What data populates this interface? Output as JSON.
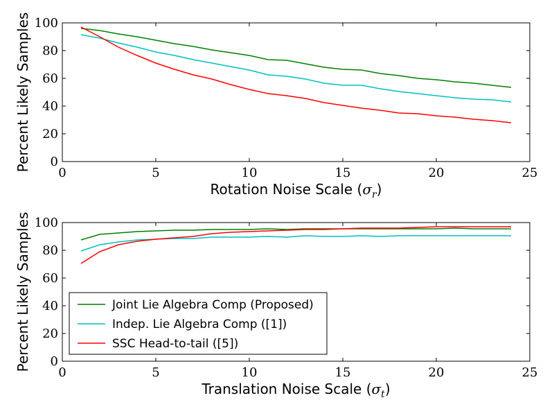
{
  "chart_data": [
    {
      "type": "line",
      "title": "",
      "xlabel": "Rotation Noise Scale (",
      "xlabel_symbol": "σ",
      "xlabel_sub": "r",
      "xlabel_close": ")",
      "ylabel": "Percent Likely Samples",
      "xlim": [
        0,
        25
      ],
      "ylim": [
        0,
        100
      ],
      "xticks": [
        0,
        5,
        10,
        15,
        20,
        25
      ],
      "yticks": [
        0,
        20,
        40,
        60,
        80,
        100
      ],
      "grid": false,
      "x": [
        1,
        2,
        3,
        4,
        5,
        6,
        7,
        8,
        9,
        10,
        11,
        12,
        13,
        14,
        15,
        16,
        17,
        18,
        19,
        20,
        21,
        22,
        23,
        24
      ],
      "series": [
        {
          "name": "Joint Lie Algebra Comp (Proposed)",
          "color": "#007f00",
          "values": [
            96,
            94.5,
            92,
            90,
            87.5,
            85,
            83,
            80.5,
            78.5,
            76.5,
            73.5,
            73,
            70.5,
            68,
            66.5,
            66,
            63.5,
            62,
            60,
            59,
            57.5,
            56.5,
            55,
            53.5
          ]
        },
        {
          "name": "Indep. Lie Algebra Comp ([1])",
          "color": "#00bfbf",
          "values": [
            91.5,
            89,
            85.5,
            82.5,
            79,
            76.5,
            73.5,
            71,
            68.5,
            66,
            62.5,
            61.5,
            59.5,
            56.5,
            55,
            55,
            52.5,
            50.5,
            49,
            47.5,
            46,
            45,
            44.5,
            43
          ]
        },
        {
          "name": "SSC Head-to-tail ([5])",
          "color": "#ff0000",
          "values": [
            97,
            90,
            82.5,
            76.5,
            71,
            66.5,
            62.5,
            59.5,
            55.5,
            52,
            49,
            47.5,
            45.5,
            42.5,
            40.5,
            38.5,
            37,
            35,
            34.5,
            33,
            32,
            30.5,
            29.5,
            28
          ]
        }
      ]
    },
    {
      "type": "line",
      "title": "",
      "xlabel": "Translation Noise Scale (",
      "xlabel_symbol": "σ",
      "xlabel_sub": "t",
      "xlabel_close": ")",
      "ylabel": "Percent Likely Samples",
      "xlim": [
        0,
        25
      ],
      "ylim": [
        0,
        100
      ],
      "xticks": [
        0,
        5,
        10,
        15,
        20,
        25
      ],
      "yticks": [
        0,
        20,
        40,
        60,
        80,
        100
      ],
      "grid": false,
      "legend_position": "lower-left",
      "x": [
        1,
        2,
        3,
        4,
        5,
        6,
        7,
        8,
        9,
        10,
        11,
        12,
        13,
        14,
        15,
        16,
        17,
        18,
        19,
        20,
        21,
        22,
        23,
        24
      ],
      "series": [
        {
          "name": "Joint Lie Algebra Comp (Proposed)",
          "color": "#007f00",
          "values": [
            87.5,
            91.5,
            92.5,
            93.5,
            94,
            94.5,
            94.5,
            95,
            95,
            95,
            95.5,
            95,
            95.5,
            95.5,
            95.5,
            95.5,
            95.5,
            95.5,
            95.5,
            95.5,
            96,
            95.5,
            95.5,
            95.5
          ]
        },
        {
          "name": "Indep. Lie Algebra Comp ([1])",
          "color": "#00bfbf",
          "values": [
            79.5,
            84,
            86,
            87.5,
            88,
            88.5,
            88.5,
            89.5,
            89.5,
            89.5,
            90,
            89.5,
            90.5,
            90,
            90,
            90.5,
            90,
            90.5,
            90.5,
            90.5,
            90.5,
            90.5,
            90.5,
            90.5
          ]
        },
        {
          "name": "SSC Head-to-tail ([5])",
          "color": "#ff0000",
          "values": [
            70.5,
            79,
            84,
            86.5,
            88,
            89,
            90,
            92,
            93,
            93.5,
            94,
            94.5,
            95,
            95,
            95.5,
            96,
            96,
            96,
            96.5,
            97,
            97,
            97,
            97,
            97
          ]
        }
      ]
    }
  ]
}
